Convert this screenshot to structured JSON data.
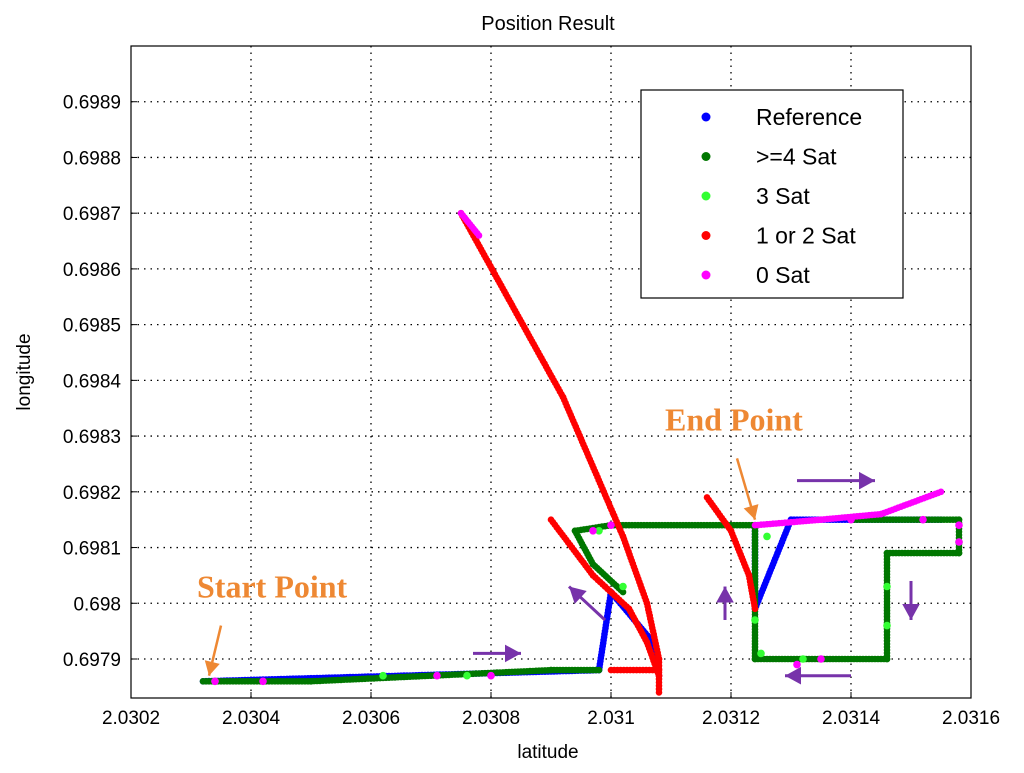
{
  "chart_data": {
    "type": "scatter",
    "title": "Position Result",
    "xlabel": "latitude",
    "ylabel": "longitude",
    "xlim": [
      2.0302,
      2.0316
    ],
    "ylim": [
      0.69783,
      0.699
    ],
    "grid": true,
    "x_ticks": [
      2.0302,
      2.0304,
      2.0306,
      2.0308,
      2.031,
      2.0312,
      2.0314,
      2.0316
    ],
    "x_tick_labels": [
      "2.0302",
      "2.0304",
      "2.0306",
      "2.0308",
      "2.031",
      "2.0312",
      "2.0314",
      "2.0316"
    ],
    "y_ticks": [
      0.6979,
      0.698,
      0.6981,
      0.6982,
      0.6983,
      0.6984,
      0.6985,
      0.6986,
      0.6987,
      0.6988,
      0.6989
    ],
    "y_tick_labels": [
      "0.6979",
      "0.698",
      "0.6981",
      "0.6982",
      "0.6983",
      "0.6984",
      "0.6985",
      "0.6986",
      "0.6987",
      "0.6988",
      "0.6989"
    ],
    "legend_position": "top-right",
    "series": [
      {
        "name": "Reference",
        "color": "#0000ff",
        "segments": [
          [
            [
              2.03032,
              0.69786
            ],
            [
              2.03098,
              0.69788
            ],
            [
              2.031,
              0.69802
            ],
            [
              2.03107,
              0.69793
            ],
            [
              2.03108,
              0.69787
            ]
          ],
          [
            [
              2.03124,
              0.69814
            ],
            [
              2.03124,
              0.69799
            ],
            [
              2.0313,
              0.69815
            ],
            [
              2.03155,
              0.69815
            ]
          ]
        ]
      },
      {
        "name": ">=4 Sat",
        "color": "#007700",
        "segments": [
          [
            [
              2.03032,
              0.69786
            ],
            [
              2.0305,
              0.69786
            ],
            [
              2.0307,
              0.69787
            ],
            [
              2.0309,
              0.69788
            ],
            [
              2.03098,
              0.69788
            ]
          ],
          [
            [
              2.03094,
              0.69813
            ],
            [
              2.031,
              0.69814
            ],
            [
              2.03124,
              0.69814
            ]
          ],
          [
            [
              2.03124,
              0.69814
            ],
            [
              2.03124,
              0.6979
            ],
            [
              2.03146,
              0.6979
            ],
            [
              2.03146,
              0.69809
            ],
            [
              2.03158,
              0.69809
            ],
            [
              2.03158,
              0.69815
            ],
            [
              2.0314,
              0.69815
            ]
          ],
          [
            [
              2.03094,
              0.69813
            ],
            [
              2.03097,
              0.69807
            ],
            [
              2.03102,
              0.69802
            ]
          ]
        ]
      },
      {
        "name": "3 Sat",
        "color": "#33ff33",
        "points": [
          [
            2.03034,
            0.69786
          ],
          [
            2.03062,
            0.69787
          ],
          [
            2.03076,
            0.69787
          ],
          [
            2.03098,
            0.69813
          ],
          [
            2.03126,
            0.69812
          ],
          [
            2.03124,
            0.69797
          ],
          [
            2.03125,
            0.69791
          ],
          [
            2.03146,
            0.69803
          ],
          [
            2.03146,
            0.69796
          ],
          [
            2.03158,
            0.69811
          ],
          [
            2.03132,
            0.6979
          ],
          [
            2.03102,
            0.69803
          ]
        ]
      },
      {
        "name": "1 or 2 Sat",
        "color": "#ff0000",
        "segments": [
          [
            [
              2.03075,
              0.6987
            ],
            [
              2.03092,
              0.69837
            ],
            [
              2.03102,
              0.69812
            ],
            [
              2.03106,
              0.698
            ],
            [
              2.03108,
              0.6979
            ],
            [
              2.03108,
              0.69784
            ]
          ],
          [
            [
              2.0309,
              0.69815
            ],
            [
              2.03097,
              0.69805
            ],
            [
              2.03103,
              0.69799
            ],
            [
              2.03106,
              0.69793
            ],
            [
              2.03108,
              0.69787
            ]
          ],
          [
            [
              2.03116,
              0.69819
            ],
            [
              2.0312,
              0.69813
            ],
            [
              2.03123,
              0.69805
            ],
            [
              2.03124,
              0.69799
            ]
          ],
          [
            [
              2.031,
              0.69788
            ],
            [
              2.03108,
              0.69788
            ]
          ]
        ]
      },
      {
        "name": "0 Sat",
        "color": "#ff00ff",
        "segments": [
          [
            [
              2.03075,
              0.6987
            ],
            [
              2.03078,
              0.69866
            ]
          ],
          [
            [
              2.03124,
              0.69814
            ],
            [
              2.03135,
              0.69815
            ],
            [
              2.03145,
              0.69816
            ],
            [
              2.03155,
              0.6982
            ]
          ]
        ],
        "points": [
          [
            2.03034,
            0.69786
          ],
          [
            2.03042,
            0.69786
          ],
          [
            2.03071,
            0.69787
          ],
          [
            2.0308,
            0.69787
          ],
          [
            2.03131,
            0.69789
          ],
          [
            2.03135,
            0.6979
          ],
          [
            2.03097,
            0.69813
          ],
          [
            2.031,
            0.69814
          ],
          [
            2.03158,
            0.69811
          ],
          [
            2.03158,
            0.69814
          ],
          [
            2.0314,
            0.69815
          ],
          [
            2.03152,
            0.69815
          ]
        ]
      }
    ],
    "annotations": [
      {
        "text": "Start Point",
        "color": "#ee8833",
        "at": [
          2.03031,
          0.69801
        ],
        "arrow_from": [
          2.03035,
          0.69796
        ],
        "arrow_to": [
          2.03033,
          0.69787
        ]
      },
      {
        "text": "End Point",
        "color": "#ee8833",
        "at": [
          2.03109,
          0.69831
        ],
        "arrow_from": [
          2.03121,
          0.69826
        ],
        "arrow_to": [
          2.03124,
          0.69815
        ]
      }
    ],
    "direction_arrows": [
      {
        "color": "#7733aa",
        "from": [
          2.03077,
          0.69791
        ],
        "to": [
          2.03085,
          0.69791
        ]
      },
      {
        "color": "#7733aa",
        "from": [
          2.03131,
          0.69822
        ],
        "to": [
          2.03144,
          0.69822
        ]
      },
      {
        "color": "#7733aa",
        "from": [
          2.03099,
          0.69797
        ],
        "to": [
          2.03093,
          0.69803
        ]
      },
      {
        "color": "#7733aa",
        "from": [
          2.03119,
          0.69797
        ],
        "to": [
          2.03119,
          0.69803
        ]
      },
      {
        "color": "#7733aa",
        "from": [
          2.0315,
          0.69804
        ],
        "to": [
          2.0315,
          0.69797
        ]
      },
      {
        "color": "#7733aa",
        "from": [
          2.0314,
          0.69787
        ],
        "to": [
          2.03129,
          0.69787
        ]
      }
    ]
  }
}
